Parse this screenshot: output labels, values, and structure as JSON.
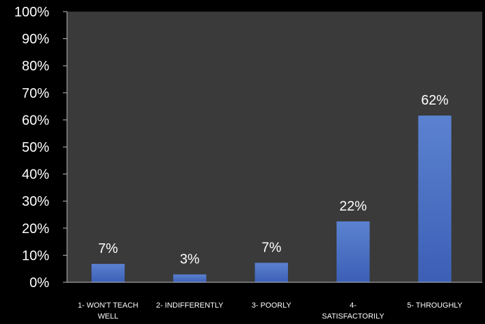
{
  "chart_data": {
    "type": "bar",
    "categories": [
      [
        "1- WON'T TEACH",
        "WELL"
      ],
      [
        "2- INDIFFERENTLY"
      ],
      [
        "3- POORLY"
      ],
      [
        "4-",
        "SATISFACTORILY"
      ],
      [
        "5- THROUGHLY"
      ]
    ],
    "values": [
      6.8,
      2.9,
      7.2,
      22.5,
      61.6
    ],
    "data_labels": [
      "7%",
      "3%",
      "7%",
      "22%",
      "62%"
    ],
    "y_ticks": [
      "0%",
      "10%",
      "20%",
      "30%",
      "40%",
      "50%",
      "60%",
      "70%",
      "80%",
      "90%",
      "100%"
    ],
    "ylim": [
      0,
      100
    ],
    "title": "",
    "xlabel": "",
    "ylabel": "",
    "grid": false,
    "legend": "none",
    "colors": {
      "page_background": "#000000",
      "plot_background": "#3a3a3a",
      "bar_top": "#5b82d0",
      "bar_bottom": "#3c5fb6",
      "text": "#ffffff",
      "axis": "#bfbfbf"
    }
  }
}
